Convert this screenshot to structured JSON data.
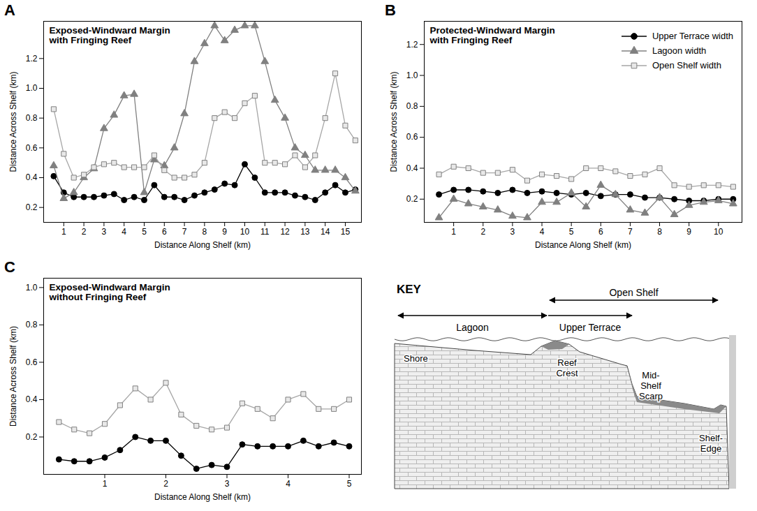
{
  "chart_data": [
    {
      "type": "line",
      "panel_label": "A",
      "title": "Exposed-Windward Margin with Fringing Reef",
      "x_label": "Distance Along Shelf (km)",
      "y_label": "Distance Across Shelf (km)",
      "xlim": [
        0,
        15.8
      ],
      "ylim": [
        0.1,
        1.45
      ],
      "xticks": [
        1,
        2,
        3,
        4,
        5,
        6,
        7,
        8,
        9,
        10,
        11,
        12,
        13,
        14,
        15
      ],
      "yticks": [
        0.2,
        0.4,
        0.6,
        0.8,
        {
          "value": 1,
          "label": "1.0"
        },
        1.2
      ],
      "grid": false,
      "x": [
        0.5,
        1,
        1.5,
        2,
        2.5,
        3,
        3.5,
        4,
        4.5,
        5,
        5.5,
        6,
        6.5,
        7,
        7.5,
        8,
        8.5,
        9,
        9.5,
        10,
        10.5,
        11,
        11.5,
        12,
        12.5,
        13,
        13.5,
        14,
        14.5,
        15,
        15.5
      ],
      "series": [
        {
          "name": "Upper Terrace width",
          "color": "#000000",
          "marker": "circle",
          "values": [
            0.41,
            0.3,
            0.27,
            0.27,
            0.27,
            0.28,
            0.29,
            0.25,
            0.27,
            0.25,
            0.35,
            0.27,
            0.27,
            0.25,
            0.28,
            0.3,
            0.32,
            0.36,
            0.35,
            0.49,
            0.4,
            0.3,
            0.3,
            0.3,
            0.28,
            0.27,
            0.25,
            0.3,
            0.35,
            0.3,
            0.32
          ]
        },
        {
          "name": "Lagoon width",
          "color": "#808080",
          "marker": "triangle",
          "values": [
            0.48,
            0.26,
            0.3,
            0.4,
            0.46,
            0.73,
            0.82,
            0.95,
            0.96,
            0.3,
            0.52,
            0.48,
            0.6,
            0.83,
            1.18,
            1.3,
            1.42,
            1.32,
            1.39,
            1.42,
            1.42,
            1.18,
            0.92,
            0.8,
            0.6,
            0.55,
            0.45,
            0.45,
            0.45,
            0.4,
            0.31
          ]
        },
        {
          "name": "Open Shelf width",
          "color": "#a6a6a6",
          "marker": "square",
          "values": [
            0.86,
            0.56,
            0.4,
            0.42,
            0.47,
            0.49,
            0.5,
            0.47,
            0.47,
            0.47,
            0.55,
            0.45,
            0.4,
            0.4,
            0.42,
            0.5,
            0.8,
            0.84,
            0.8,
            0.9,
            0.95,
            0.5,
            0.5,
            0.49,
            0.55,
            0.47,
            0.55,
            0.8,
            1.1,
            0.75,
            0.65
          ]
        }
      ]
    },
    {
      "type": "line",
      "panel_label": "B",
      "title": "Protected-Windward Margin with Fringing Reef",
      "x_label": "Distance Along Shelf (km)",
      "y_label": "Distance Across Shelf (km)",
      "xlim": [
        0,
        10.8
      ],
      "ylim": [
        0.05,
        1.35
      ],
      "xticks": [
        1,
        2,
        3,
        4,
        5,
        6,
        7,
        8,
        9,
        10
      ],
      "yticks": [
        0.2,
        0.4,
        0.6,
        0.8,
        {
          "value": 1,
          "label": "1.0"
        },
        1.2
      ],
      "grid": false,
      "legend": "top-right",
      "x": [
        0.5,
        1,
        1.5,
        2,
        2.5,
        3,
        3.5,
        4,
        4.5,
        5,
        5.5,
        6,
        6.5,
        7,
        7.5,
        8,
        8.5,
        9,
        9.5,
        10,
        10.5
      ],
      "series": [
        {
          "name": "Upper Terrace width",
          "color": "#000000",
          "marker": "circle",
          "values": [
            0.23,
            0.26,
            0.26,
            0.25,
            0.24,
            0.26,
            0.24,
            0.25,
            0.24,
            0.23,
            0.24,
            0.22,
            0.23,
            0.23,
            0.21,
            0.21,
            0.2,
            0.19,
            0.19,
            0.2,
            0.2
          ]
        },
        {
          "name": "Lagoon width",
          "color": "#808080",
          "marker": "triangle",
          "values": [
            0.08,
            0.2,
            0.17,
            0.15,
            0.13,
            0.09,
            0.08,
            0.18,
            0.18,
            0.24,
            0.15,
            0.29,
            0.23,
            0.13,
            0.11,
            0.21,
            0.1,
            0.16,
            0.18,
            0.19,
            0.17
          ]
        },
        {
          "name": "Open Shelf width",
          "color": "#a6a6a6",
          "marker": "square",
          "values": [
            0.36,
            0.41,
            0.4,
            0.37,
            0.37,
            0.39,
            0.32,
            0.36,
            0.35,
            0.33,
            0.4,
            0.4,
            0.38,
            0.35,
            0.36,
            0.4,
            0.29,
            0.28,
            0.29,
            0.29,
            0.28
          ]
        }
      ]
    },
    {
      "type": "line",
      "panel_label": "C",
      "title": "Exposed-Windward Margin without Fringing Reef",
      "x_label": "Distance Along Shelf (km)",
      "y_label": "Distance Across Shelf (km)",
      "xlim": [
        0,
        5.2
      ],
      "ylim": [
        0,
        1.05
      ],
      "xticks": [
        1,
        2,
        3,
        4,
        5
      ],
      "yticks": [
        0.2,
        0.4,
        0.6,
        0.8,
        {
          "value": 1,
          "label": "1.0"
        }
      ],
      "grid": false,
      "x": [
        0.25,
        0.5,
        0.75,
        1,
        1.25,
        1.5,
        1.75,
        2,
        2.25,
        2.5,
        2.75,
        3,
        3.25,
        3.5,
        3.75,
        4,
        4.25,
        4.5,
        4.75,
        5
      ],
      "series": [
        {
          "name": "Upper Terrace width",
          "color": "#000000",
          "marker": "circle",
          "values": [
            0.08,
            0.07,
            0.07,
            0.09,
            0.13,
            0.2,
            0.18,
            0.18,
            0.1,
            0.03,
            0.05,
            0.04,
            0.16,
            0.15,
            0.15,
            0.15,
            0.18,
            0.15,
            0.17,
            0.15
          ]
        },
        {
          "name": "Open Shelf width",
          "color": "#a6a6a6",
          "marker": "square",
          "values": [
            0.28,
            0.24,
            0.22,
            0.27,
            0.37,
            0.46,
            0.4,
            0.49,
            0.32,
            0.26,
            0.24,
            0.25,
            0.38,
            0.35,
            0.3,
            0.4,
            0.43,
            0.35,
            0.35,
            0.4
          ]
        }
      ]
    }
  ],
  "key": {
    "title": "KEY",
    "spans": [
      "Lagoon",
      "Upper Terrace",
      "Open Shelf"
    ],
    "labels": [
      "Shore",
      "Reef Crest",
      "Mid-Shelf Scarp",
      "Shelf-Edge"
    ]
  }
}
